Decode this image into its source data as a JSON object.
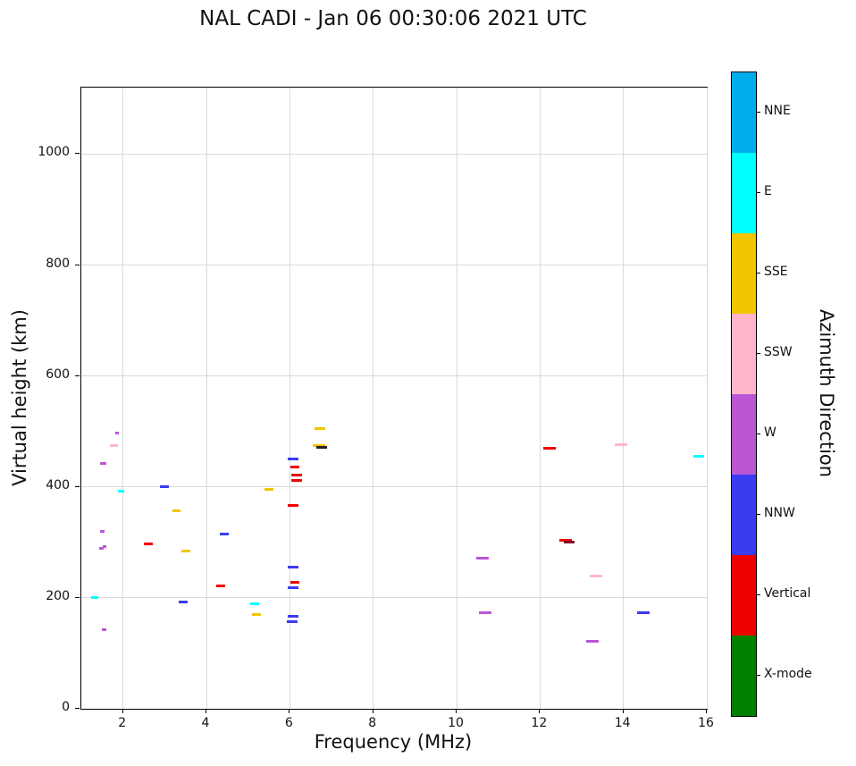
{
  "title": "NAL CADI - Jan 06 00:30:06 2021 UTC",
  "chart_data": {
    "type": "scatter",
    "title": "NAL CADI - Jan 06 00:30:06 2021 UTC",
    "xlabel": "Frequency (MHz)",
    "ylabel": "Virtual height (km)",
    "xlim": [
      1,
      16
    ],
    "ylim": [
      0,
      1120
    ],
    "xticks": [
      2,
      4,
      6,
      8,
      10,
      12,
      14,
      16
    ],
    "yticks": [
      0,
      200,
      400,
      600,
      800,
      1000
    ],
    "grid": true,
    "marker": "horizontal-dash",
    "colorbar": {
      "label": "Azimuth Direction",
      "position": "right",
      "categories": [
        {
          "label": "NNE",
          "color": "#00ACEC"
        },
        {
          "label": "E",
          "color": "#00FFFF"
        },
        {
          "label": "SSE",
          "color": "#F2C500"
        },
        {
          "label": "SSW",
          "color": "#FFB6C8"
        },
        {
          "label": "W",
          "color": "#BA55D3"
        },
        {
          "label": "NNW",
          "color": "#3B3BF0"
        },
        {
          "label": "Vertical",
          "color": "#EE0000"
        },
        {
          "label": "X-mode",
          "color": "#008000"
        }
      ]
    },
    "points": [
      {
        "x": 1.32,
        "y": 200,
        "dir": "E",
        "w": 8
      },
      {
        "x": 1.55,
        "y": 143,
        "dir": "W",
        "w": 5
      },
      {
        "x": 1.48,
        "y": 289,
        "dir": "W",
        "w": 5
      },
      {
        "x": 1.56,
        "y": 293,
        "dir": "W",
        "w": 4
      },
      {
        "x": 1.5,
        "y": 320,
        "dir": "W",
        "w": 5
      },
      {
        "x": 1.52,
        "y": 443,
        "dir": "W",
        "w": 7
      },
      {
        "x": 1.85,
        "y": 497,
        "dir": "W",
        "w": 4
      },
      {
        "x": 1.78,
        "y": 475,
        "dir": "SSW",
        "w": 9
      },
      {
        "x": 1.95,
        "y": 393,
        "dir": "E",
        "w": 7
      },
      {
        "x": 2.6,
        "y": 298,
        "dir": "Vertical",
        "w": 10
      },
      {
        "x": 3.0,
        "y": 401,
        "dir": "NNW",
        "w": 10
      },
      {
        "x": 3.28,
        "y": 357,
        "dir": "SSE",
        "w": 9
      },
      {
        "x": 3.5,
        "y": 284,
        "dir": "SSE",
        "w": 10
      },
      {
        "x": 3.45,
        "y": 193,
        "dir": "NNW",
        "w": 10
      },
      {
        "x": 4.42,
        "y": 315,
        "dir": "NNW",
        "w": 10
      },
      {
        "x": 4.35,
        "y": 222,
        "dir": "Vertical",
        "w": 10
      },
      {
        "x": 5.15,
        "y": 190,
        "dir": "E",
        "w": 10
      },
      {
        "x": 5.2,
        "y": 170,
        "dir": "SSE",
        "w": 10
      },
      {
        "x": 5.5,
        "y": 395,
        "dir": "SSE",
        "w": 10
      },
      {
        "x": 6.08,
        "y": 450,
        "dir": "NNW",
        "w": 12
      },
      {
        "x": 6.12,
        "y": 436,
        "dir": "Vertical",
        "w": 10
      },
      {
        "x": 6.17,
        "y": 421,
        "dir": "Vertical",
        "w": 12
      },
      {
        "x": 6.17,
        "y": 411,
        "dir": "Vertical",
        "w": 12
      },
      {
        "x": 6.08,
        "y": 367,
        "dir": "Vertical",
        "w": 12
      },
      {
        "x": 6.08,
        "y": 256,
        "dir": "NNW",
        "w": 12
      },
      {
        "x": 6.12,
        "y": 228,
        "dir": "Vertical",
        "w": 10
      },
      {
        "x": 6.08,
        "y": 218,
        "dir": "NNW",
        "w": 12
      },
      {
        "x": 6.08,
        "y": 166,
        "dir": "NNW",
        "w": 12
      },
      {
        "x": 6.05,
        "y": 157,
        "dir": "NNW",
        "w": 12
      },
      {
        "x": 6.72,
        "y": 505,
        "dir": "SSE",
        "w": 12
      },
      {
        "x": 6.7,
        "y": 474,
        "dir": "SSE",
        "w": 14
      },
      {
        "x": 6.76,
        "y": 471,
        "color": "#222222",
        "w": 12
      },
      {
        "x": 10.62,
        "y": 271,
        "dir": "W",
        "w": 14
      },
      {
        "x": 10.68,
        "y": 174,
        "dir": "W",
        "w": 14
      },
      {
        "x": 12.22,
        "y": 470,
        "dir": "Vertical",
        "w": 14
      },
      {
        "x": 12.62,
        "y": 303,
        "dir": "Vertical",
        "w": 14
      },
      {
        "x": 12.7,
        "y": 300,
        "color": "#7A0F2B",
        "w": 12
      },
      {
        "x": 13.35,
        "y": 240,
        "dir": "SSW",
        "w": 14
      },
      {
        "x": 13.25,
        "y": 122,
        "dir": "W",
        "w": 14
      },
      {
        "x": 13.95,
        "y": 477,
        "dir": "SSW",
        "w": 14
      },
      {
        "x": 14.48,
        "y": 173,
        "dir": "NNW",
        "w": 14
      },
      {
        "x": 15.8,
        "y": 455,
        "dir": "E",
        "w": 12
      }
    ]
  }
}
